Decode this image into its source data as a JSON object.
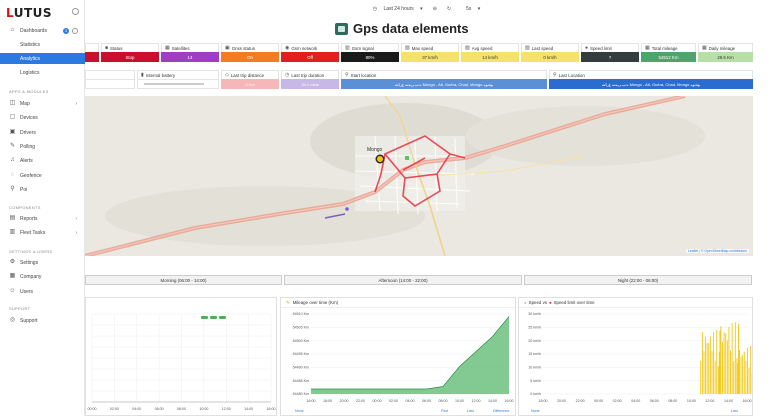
{
  "app": {
    "logo_icon": "L",
    "logo_text": "UTUS"
  },
  "sidebar": {
    "items": [
      {
        "label": "Dashboards",
        "icon": "⌂",
        "badge": "3"
      },
      {
        "label": "Statistics"
      },
      {
        "label": "Analytics"
      },
      {
        "label": "Logistics"
      }
    ],
    "section_apps": "APPS & MODULES",
    "apps": [
      {
        "label": "Map",
        "icon": "◫"
      },
      {
        "label": "Devices",
        "icon": "▢"
      },
      {
        "label": "Drivers",
        "icon": "▣"
      },
      {
        "label": "Polling",
        "icon": "✎"
      },
      {
        "label": "Alerts",
        "icon": "♫"
      },
      {
        "label": "Geofence",
        "icon": "◌"
      },
      {
        "label": "Poi",
        "icon": "⚲"
      }
    ],
    "section_components": "COMPONENTS",
    "components": [
      {
        "label": "Reports",
        "icon": "▤"
      },
      {
        "label": "Fleet Tasks",
        "icon": "▥"
      }
    ],
    "section_settings": "SETTINGS & USERS",
    "settings": [
      {
        "label": "Settings",
        "icon": "⚙"
      },
      {
        "label": "Company",
        "icon": "▦"
      },
      {
        "label": "Users",
        "icon": "☺"
      }
    ],
    "section_support": "SUPPORT",
    "support": [
      {
        "label": "Support",
        "icon": "◎"
      }
    ]
  },
  "topbar": {
    "range": "Last 24 hours",
    "refresh": "5s"
  },
  "page_title": "Gps data elements",
  "stats_row1": [
    {
      "label": "Status",
      "value": "Stop",
      "color": "#c8102e",
      "icon": "■"
    },
    {
      "label": "Satellites",
      "value": "14",
      "color": "#9c3fc3",
      "icon": "▦"
    },
    {
      "label": "Gnss status",
      "value": "On",
      "color": "#f47b20",
      "icon": "▣"
    },
    {
      "label": "Gsm network",
      "value": "Off",
      "color": "#e02020",
      "icon": "◉"
    },
    {
      "label": "Gsm signal",
      "value": "80%",
      "color": "#1a1a1a",
      "icon": "▥"
    },
    {
      "label": "Max speed",
      "value": "37 km/h",
      "color": "#f5e26a",
      "icon": "▨",
      "dark": true
    },
    {
      "label": "Avg speed",
      "value": "14 km/h",
      "color": "#f5e26a",
      "icon": "▨",
      "dark": true
    },
    {
      "label": "Last speed",
      "value": "0 km/h",
      "color": "#f5e26a",
      "icon": "▨",
      "dark": true
    },
    {
      "label": "Speed limit",
      "value": "?",
      "color": "#333d3d",
      "icon": "●"
    },
    {
      "label": "Total mileage",
      "value": "54512 Km",
      "color": "#4fa36d",
      "icon": "▦"
    },
    {
      "label": "Daily mileage",
      "value": "29.5 Km",
      "color": "#b8dfa8",
      "icon": "▦",
      "dark": true
    }
  ],
  "stats_row2": [
    {
      "label": "Internal battery",
      "icon": "▮"
    },
    {
      "label": "Last trip distance",
      "value": "0 Km",
      "color": "#f5b7b7",
      "icon": "◇"
    },
    {
      "label": "Last trip duration",
      "value": "34.2 mins",
      "color": "#c7b8e8",
      "icon": "◷"
    },
    {
      "label": "Start location",
      "value": "ﺖﻴﺑ ﻰﻤﺳ ﻉﺭﺎﺷ Mongo - Ati, Guéra, Chad, Mongo ﻮﻐﻧﻮﻣ",
      "color": "#5b8fd6",
      "icon": "⚲"
    },
    {
      "label": "Last Location",
      "value": "ﺖﻴﺑ ﻰﻤﺳ ﻉﺭﺎﺷ Mongo - Ati, Guéra, Chad, Mongo ﻮﻐﻧﻮﻣ",
      "color": "#2b6cd0",
      "icon": "⚲"
    }
  ],
  "map": {
    "city_label": "Mongo",
    "attribution": "Leaflet | © OpenStreetMap contributors",
    "track_color": "#e8394a"
  },
  "shifts": [
    {
      "label": "Morning (06:00 - 14:00)"
    },
    {
      "label": "Afternoon (14:00 - 22:00)"
    },
    {
      "label": "Night (22:00 - 06:00)"
    }
  ],
  "chart_data": [
    {
      "type": "line",
      "title": "",
      "x": [
        "00:00",
        "02:00",
        "04:00",
        "06:00",
        "08:00",
        "10:00",
        "12:00",
        "14:00",
        "16:00"
      ],
      "series": [
        {
          "values": [
            0,
            0,
            0,
            0,
            0,
            0,
            0,
            0,
            0
          ]
        }
      ],
      "note_visible": "green markers around 10:00-12:00",
      "legend": [],
      "markers_x": [
        "10:00",
        "11:00",
        "12:00"
      ]
    },
    {
      "type": "area",
      "title": "Mileage over time (Km)",
      "x": [
        "16:00",
        "18:00",
        "20:00",
        "22:00",
        "00:00",
        "02:00",
        "04:00",
        "06:00",
        "08:00",
        "10:00",
        "12:00",
        "14:00",
        "16:00"
      ],
      "ylabels": [
        "54510 Km",
        "54505 Km",
        "54500 Km",
        "54495 Km",
        "54490 Km",
        "54485 Km",
        "54480 Km"
      ],
      "ylim": [
        54480,
        54512
      ],
      "series": [
        {
          "values": [
            54482,
            54482,
            54482,
            54482,
            54482,
            54482,
            54482,
            54482,
            54483,
            54491,
            54497,
            54503,
            54511
          ]
        }
      ],
      "footer": [
        "None",
        "First",
        "Last",
        "Difference"
      ]
    },
    {
      "type": "bar",
      "title": "Speed vs ● Speed limit over time",
      "legend_items": [
        "Speed vs",
        "Speed limit over time"
      ],
      "x": [
        "18:00",
        "20:00",
        "22:00",
        "00:00",
        "02:00",
        "04:00",
        "06:00",
        "08:00",
        "10:00",
        "12:00",
        "14:00",
        "16:00"
      ],
      "ylabels": [
        "30 km/h",
        "25 km/h",
        "20 km/h",
        "15 km/h",
        "10 km/h",
        "5 km/h",
        "0 km/h"
      ],
      "ylim": [
        0,
        30
      ],
      "series": [
        {
          "name": "Speed",
          "values": [
            0,
            0,
            0,
            0,
            0,
            0,
            0,
            0,
            0,
            24,
            27,
            18
          ]
        }
      ],
      "footer": [
        "None",
        "Last"
      ]
    }
  ]
}
